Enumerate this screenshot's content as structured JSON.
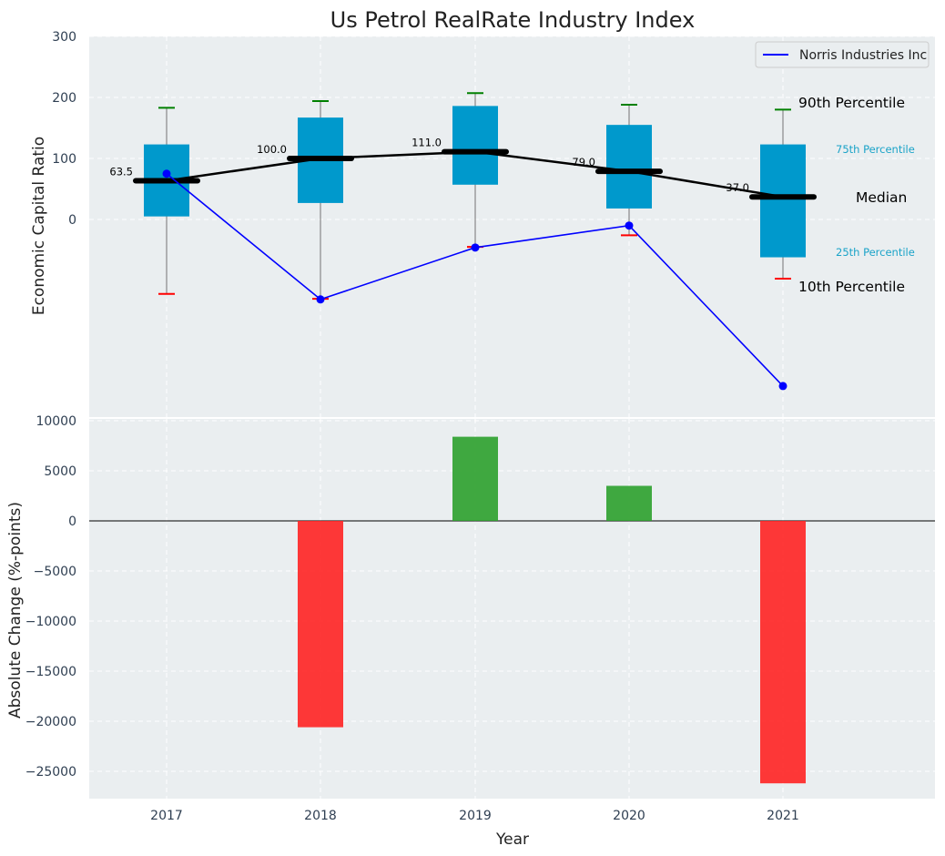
{
  "chart_data": [
    {
      "type": "box",
      "title": "Us Petrol RealRate Industry Index",
      "ylabel": "Economic Capital Ratio",
      "ylim": [
        -325,
        300
      ],
      "yticks": [
        0,
        100,
        200,
        300
      ],
      "categories": [
        "2017",
        "2018",
        "2019",
        "2020",
        "2021"
      ],
      "boxes": [
        {
          "year": "2017",
          "p10": -122,
          "p25": 5,
          "median": 63.5,
          "p75": 123,
          "p90": 183
        },
        {
          "year": "2018",
          "p10": -130,
          "p25": 27,
          "median": 100.0,
          "p75": 167,
          "p90": 194
        },
        {
          "year": "2019",
          "p10": -45,
          "p25": 57,
          "median": 111.0,
          "p75": 186,
          "p90": 207
        },
        {
          "year": "2020",
          "p10": -26,
          "p25": 18,
          "median": 79.0,
          "p75": 155,
          "p90": 188
        },
        {
          "year": "2021",
          "p10": -97,
          "p25": -62,
          "median": 37.0,
          "p75": 123,
          "p90": 180
        }
      ],
      "median_labels": [
        "63.5",
        "100.0",
        "111.0",
        "79.0",
        "37.0"
      ],
      "series": [
        {
          "name": "Norris Industries Inc",
          "color": "#0000ff",
          "values": [
            75,
            -131,
            -46,
            -10,
            -273
          ]
        }
      ],
      "legend": {
        "entries": [
          "Norris Industries Inc"
        ],
        "position": "top-right"
      },
      "annotations": {
        "p90": "90th Percentile",
        "p75": "75th Percentile",
        "median": "Median",
        "p25": "25th Percentile",
        "p10": "10th Percentile"
      },
      "colors": {
        "box": "#0099cc",
        "median": "#000000",
        "p90_cap": "#008000",
        "p10_cap": "#ff0000",
        "line": "#0000ff",
        "bg": "#eaeef0"
      }
    },
    {
      "type": "bar",
      "ylabel": "Absolute Change (%-points)",
      "xlabel": "Year",
      "ylim": [
        -28000,
        10000
      ],
      "yticks": [
        10000,
        5000,
        0,
        -5000,
        -10000,
        -15000,
        -20000,
        -25000
      ],
      "categories": [
        "2017",
        "2018",
        "2019",
        "2020",
        "2021"
      ],
      "values": [
        0,
        -20600,
        8400,
        3500,
        -26200
      ],
      "colors": {
        "positive": "#2ca02c",
        "negative": "#ff2222"
      }
    }
  ]
}
